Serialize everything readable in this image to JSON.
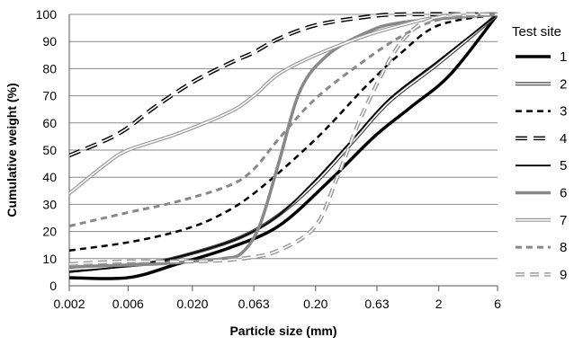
{
  "chart_data": {
    "type": "line",
    "title": "",
    "xlabel": "Particle size (mm)",
    "ylabel": "Cumulative weight (%)",
    "x_scale": "log",
    "xlim": [
      0.002,
      6
    ],
    "ylim": [
      0,
      100
    ],
    "grid": "horizontal",
    "legend_title": "Test site",
    "legend_position": "right",
    "x_ticks": [
      {
        "value": 0.002,
        "label": "0.002"
      },
      {
        "value": 0.006,
        "label": "0.006"
      },
      {
        "value": 0.02,
        "label": "0.020"
      },
      {
        "value": 0.063,
        "label": "0.063"
      },
      {
        "value": 0.2,
        "label": "0.20"
      },
      {
        "value": 0.63,
        "label": "0.63"
      },
      {
        "value": 2,
        "label": "2"
      },
      {
        "value": 6,
        "label": "6"
      }
    ],
    "y_ticks": [
      0,
      10,
      20,
      30,
      40,
      50,
      60,
      70,
      80,
      90,
      100
    ],
    "series": [
      {
        "name": "1",
        "color": "#000000",
        "style": "solid-thick",
        "points": [
          [
            0.002,
            3
          ],
          [
            0.006,
            3
          ],
          [
            0.015,
            8
          ],
          [
            0.04,
            14
          ],
          [
            0.1,
            22
          ],
          [
            0.25,
            38
          ],
          [
            0.6,
            55
          ],
          [
            1.2,
            66
          ],
          [
            2.5,
            78
          ],
          [
            6,
            100
          ]
        ]
      },
      {
        "name": "2",
        "color": "#444444",
        "style": "double",
        "points": [
          [
            0.002,
            6
          ],
          [
            0.008,
            8
          ],
          [
            0.02,
            12
          ],
          [
            0.05,
            18
          ],
          [
            0.1,
            26
          ],
          [
            0.2,
            38
          ],
          [
            0.4,
            53
          ],
          [
            0.8,
            68
          ],
          [
            2,
            82
          ],
          [
            6,
            100
          ]
        ]
      },
      {
        "name": "3",
        "color": "#000000",
        "style": "dashed",
        "points": [
          [
            0.002,
            13
          ],
          [
            0.006,
            16
          ],
          [
            0.015,
            20
          ],
          [
            0.03,
            25
          ],
          [
            0.063,
            34
          ],
          [
            0.2,
            54
          ],
          [
            0.5,
            73
          ],
          [
            1,
            86
          ],
          [
            2,
            96
          ],
          [
            6,
            100
          ]
        ]
      },
      {
        "name": "4",
        "color": "#000000",
        "style": "double-dashed",
        "points": [
          [
            0.002,
            48
          ],
          [
            0.005,
            56
          ],
          [
            0.01,
            66
          ],
          [
            0.02,
            75
          ],
          [
            0.04,
            82
          ],
          [
            0.063,
            86
          ],
          [
            0.1,
            91
          ],
          [
            0.2,
            96
          ],
          [
            0.5,
            99
          ],
          [
            1,
            100
          ],
          [
            6,
            100
          ]
        ]
      },
      {
        "name": "5",
        "color": "#000000",
        "style": "solid",
        "points": [
          [
            0.002,
            5
          ],
          [
            0.008,
            8
          ],
          [
            0.02,
            12
          ],
          [
            0.05,
            18
          ],
          [
            0.1,
            26
          ],
          [
            0.2,
            39
          ],
          [
            0.4,
            54
          ],
          [
            0.8,
            69
          ],
          [
            2,
            83
          ],
          [
            6,
            100
          ]
        ]
      },
      {
        "name": "6",
        "color": "#888888",
        "style": "solid-gray",
        "points": [
          [
            0.002,
            7
          ],
          [
            0.01,
            8
          ],
          [
            0.02,
            9
          ],
          [
            0.035,
            10
          ],
          [
            0.05,
            12
          ],
          [
            0.07,
            22
          ],
          [
            0.1,
            45
          ],
          [
            0.15,
            72
          ],
          [
            0.25,
            85
          ],
          [
            0.5,
            93
          ],
          [
            1,
            97
          ],
          [
            6,
            100
          ]
        ]
      },
      {
        "name": "7",
        "color": "#999999",
        "style": "double-gray",
        "points": [
          [
            0.002,
            34
          ],
          [
            0.004,
            45
          ],
          [
            0.006,
            50
          ],
          [
            0.015,
            56
          ],
          [
            0.04,
            64
          ],
          [
            0.063,
            70
          ],
          [
            0.1,
            78
          ],
          [
            0.2,
            85
          ],
          [
            0.5,
            92
          ],
          [
            1,
            96
          ],
          [
            2,
            99
          ],
          [
            6,
            100
          ]
        ]
      },
      {
        "name": "8",
        "color": "#888888",
        "style": "dashed-gray",
        "points": [
          [
            0.002,
            22
          ],
          [
            0.006,
            27
          ],
          [
            0.015,
            31
          ],
          [
            0.04,
            37
          ],
          [
            0.063,
            43
          ],
          [
            0.1,
            54
          ],
          [
            0.2,
            69
          ],
          [
            0.5,
            83
          ],
          [
            1,
            92
          ],
          [
            2,
            98
          ],
          [
            6,
            100
          ]
        ]
      },
      {
        "name": "9",
        "color": "#999999",
        "style": "double-dashed-gray",
        "points": [
          [
            0.002,
            8
          ],
          [
            0.006,
            9
          ],
          [
            0.02,
            9
          ],
          [
            0.05,
            10
          ],
          [
            0.1,
            13
          ],
          [
            0.2,
            22
          ],
          [
            0.3,
            40
          ],
          [
            0.5,
            65
          ],
          [
            1,
            90
          ],
          [
            2,
            99
          ],
          [
            6,
            100
          ]
        ]
      }
    ]
  }
}
